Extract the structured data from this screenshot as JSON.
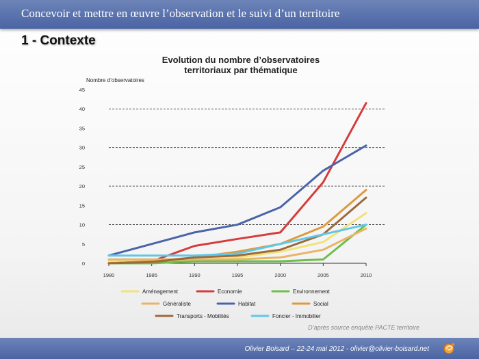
{
  "slide": {
    "header_title": "Concevoir et mettre en œuvre l’observation et le suivi d’un territoire",
    "section_title": "1 - Contexte",
    "footer_text": "Olivier Boisard – 22-24 mai 2012 - olivier@olivier-boisard.net",
    "source_note": "D’après source enquête PACTE territoire",
    "logo_icon": "orange-swirl-logo-icon"
  },
  "chart_data": {
    "type": "line",
    "title": [
      "Evolution du nombre d’observatoires",
      "territoriaux par thématique"
    ],
    "ylabel": "Nombre d’observatoires",
    "xlabel": "",
    "x": [
      1980,
      1985,
      1990,
      1995,
      2000,
      2005,
      2010
    ],
    "x_ticks": [
      "1980",
      "1985",
      "1990",
      "1995",
      "2000",
      "2005",
      "2010"
    ],
    "ylim": [
      0,
      45
    ],
    "y_ticks": [
      "0",
      "5",
      "10",
      "15",
      "20",
      "25",
      "30",
      "35",
      "40",
      "45"
    ],
    "dashed_gridlines": [
      10,
      20,
      30,
      40
    ],
    "legend_placement": "bottom",
    "series": [
      {
        "name": "Aménagement",
        "color": "#f2e27a",
        "values": [
          0.5,
          0.5,
          0.8,
          1.5,
          3,
          5.5,
          13
        ]
      },
      {
        "name": "Economie",
        "color": "#d73b3b",
        "values": [
          0,
          0.5,
          4.5,
          6.3,
          8,
          21,
          41.5
        ]
      },
      {
        "name": "Environnement",
        "color": "#6cbf4a",
        "values": [
          0,
          0,
          0.5,
          0.5,
          0.5,
          1,
          10
        ]
      },
      {
        "name": "Généraliste",
        "color": "#e9b46a",
        "values": [
          1,
          1,
          1,
          1,
          1.5,
          3.5,
          9
        ]
      },
      {
        "name": "Habitat",
        "color": "#4a64a8",
        "values": [
          2,
          5,
          8,
          10,
          14.5,
          24,
          30.5
        ]
      },
      {
        "name": "Social",
        "color": "#dd9a3e",
        "values": [
          0,
          0.5,
          1.5,
          3,
          5,
          9.5,
          19
        ]
      },
      {
        "name": "Transports - Mobilités",
        "color": "#9a6a3a",
        "values": [
          0,
          0.3,
          1.5,
          2,
          3.5,
          7.5,
          17
        ]
      },
      {
        "name": "Foncier - Immobilier",
        "color": "#5fc8e8",
        "values": [
          2,
          2,
          2,
          2.5,
          5,
          7.5,
          10
        ]
      }
    ]
  }
}
